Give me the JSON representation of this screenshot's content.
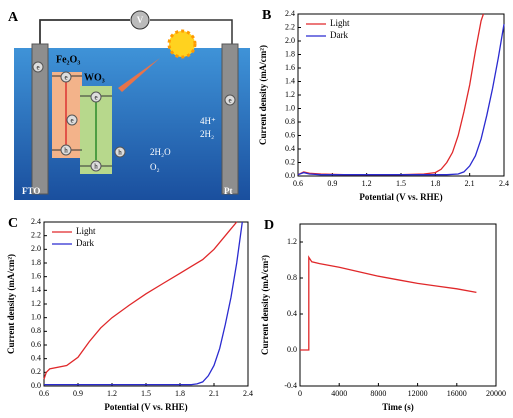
{
  "diagram": {
    "panel": "A",
    "voltmeter": "V",
    "materials": [
      "Fe₂O₃",
      "WO₃"
    ],
    "electrodes": [
      "FTO",
      "Pt"
    ],
    "reactions": [
      "4H⁺",
      "2H₂",
      "2H₂O",
      "O₂"
    ],
    "carriers": [
      "e",
      "e",
      "e",
      "e",
      "e",
      "h",
      "h",
      "h"
    ]
  },
  "chart_data": [
    {
      "type": "line",
      "panel": "B",
      "xlabel": "Potential (V vs. RHE)",
      "ylabel": "Current density (mA/cm²)",
      "legend": "upper left",
      "xlim": [
        0.6,
        2.4
      ],
      "xticks": [
        0.6,
        0.9,
        1.2,
        1.5,
        1.8,
        2.1,
        2.4
      ],
      "ylim": [
        0,
        2.4
      ],
      "yticks": [
        {
          "value": 0,
          "label": "0.0"
        },
        0.2,
        0.4,
        0.6,
        0.8,
        {
          "value": 1,
          "label": "1.0"
        },
        1.2,
        1.4,
        1.6,
        1.8,
        {
          "value": 2,
          "label": "2.0"
        },
        2.2,
        2.4
      ],
      "series": [
        {
          "name": "Light",
          "color": "#e0282a",
          "x": [
            0.6,
            0.65,
            0.7,
            0.8,
            1.0,
            1.2,
            1.5,
            1.7,
            1.8,
            1.85,
            1.9,
            1.95,
            2.0,
            2.05,
            2.1,
            2.15,
            2.2,
            2.22
          ],
          "values": [
            0.02,
            0.06,
            0.04,
            0.03,
            0.02,
            0.02,
            0.02,
            0.03,
            0.05,
            0.1,
            0.2,
            0.35,
            0.6,
            0.95,
            1.35,
            1.85,
            2.3,
            2.4
          ]
        },
        {
          "name": "Dark",
          "color": "#2b2bd0",
          "x": [
            0.6,
            0.65,
            0.7,
            0.8,
            1.0,
            1.5,
            1.9,
            2.0,
            2.05,
            2.1,
            2.15,
            2.2,
            2.25,
            2.3,
            2.35,
            2.4
          ],
          "values": [
            0.02,
            0.05,
            0.03,
            0.02,
            0.02,
            0.02,
            0.02,
            0.03,
            0.06,
            0.15,
            0.3,
            0.55,
            0.9,
            1.3,
            1.75,
            2.25
          ]
        }
      ]
    },
    {
      "type": "line",
      "panel": "C",
      "xlabel": "Potential (V vs. RHE)",
      "ylabel": "Current density (mA/cm²)",
      "legend": "upper left",
      "xlim": [
        0.6,
        2.4
      ],
      "xticks": [
        0.6,
        0.9,
        1.2,
        1.5,
        1.8,
        2.1,
        2.4
      ],
      "ylim": [
        0,
        2.4
      ],
      "yticks": [
        {
          "value": 0,
          "label": "0.0"
        },
        0.2,
        0.4,
        0.6,
        0.8,
        {
          "value": 1,
          "label": "1.0"
        },
        1.2,
        1.4,
        1.6,
        1.8,
        {
          "value": 2,
          "label": "2.0"
        },
        2.2,
        2.4
      ],
      "series": [
        {
          "name": "Light",
          "color": "#e0282a",
          "x": [
            0.6,
            0.62,
            0.65,
            0.8,
            0.9,
            1.0,
            1.1,
            1.2,
            1.35,
            1.5,
            1.65,
            1.8,
            1.9,
            2.0,
            2.1,
            2.2,
            2.25,
            2.3
          ],
          "values": [
            0.1,
            0.2,
            0.25,
            0.3,
            0.42,
            0.65,
            0.85,
            1.0,
            1.18,
            1.35,
            1.5,
            1.65,
            1.75,
            1.85,
            2.0,
            2.2,
            2.3,
            2.4
          ]
        },
        {
          "name": "Dark",
          "color": "#2b2bd0",
          "x": [
            0.6,
            0.9,
            1.2,
            1.5,
            1.8,
            1.9,
            1.95,
            2.0,
            2.05,
            2.1,
            2.15,
            2.2,
            2.25,
            2.3,
            2.35
          ],
          "values": [
            0.02,
            0.02,
            0.02,
            0.02,
            0.02,
            0.02,
            0.03,
            0.06,
            0.15,
            0.3,
            0.55,
            0.9,
            1.3,
            1.8,
            2.4
          ]
        }
      ]
    },
    {
      "type": "line",
      "panel": "D",
      "xlabel": "Time (s)",
      "ylabel": "Current density (mA/cm²)",
      "xlim": [
        0,
        20000
      ],
      "xticks": [
        0,
        4000,
        8000,
        12000,
        16000,
        20000
      ],
      "ylim": [
        -0.4,
        1.4
      ],
      "yticks": [
        -0.4,
        {
          "value": 0,
          "label": "0.0"
        },
        0.4,
        0.8,
        1.2
      ],
      "series": [
        {
          "color": "#e0282a",
          "x": [
            0,
            900,
            900,
            1200,
            2000,
            4000,
            6000,
            8000,
            10000,
            12000,
            14000,
            16000,
            18000
          ],
          "values": [
            0,
            0,
            1.03,
            0.98,
            0.96,
            0.92,
            0.87,
            0.82,
            0.78,
            0.74,
            0.71,
            0.68,
            0.64
          ]
        }
      ]
    }
  ]
}
